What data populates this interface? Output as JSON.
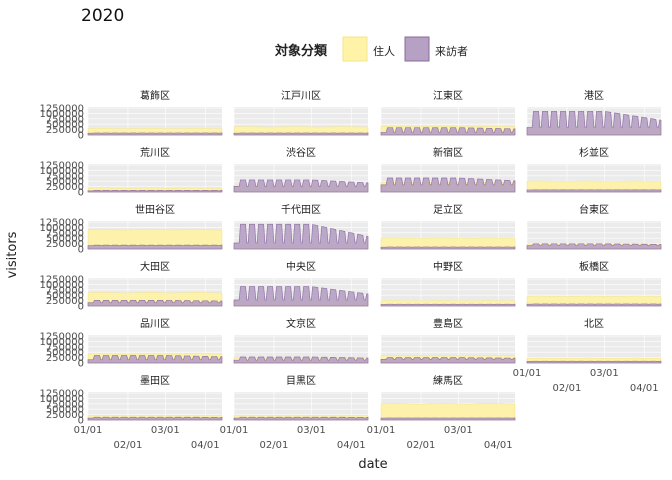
{
  "chart_data": {
    "type": "area",
    "title": "2020",
    "xlabel": "date",
    "ylabel": "visitors",
    "legend": {
      "title": "対象分類",
      "position": "top",
      "entries": [
        {
          "name": "住人",
          "color": "#FFF3A8"
        },
        {
          "name": "来訪者",
          "color": "#B6A0C4"
        }
      ]
    },
    "colors": {
      "resident_fill": "#FFF3A8",
      "resident_line": "#F4E48A",
      "visitor_fill": "#B6A0C4",
      "visitor_line": "#8A6A9E",
      "panel_bg": "#EBEBEB",
      "grid": "#FFFFFF"
    },
    "y_ticks": [
      "1250000",
      "1000000",
      "750000",
      "500000",
      "250000",
      "0"
    ],
    "y_tick_values": [
      1250000,
      1000000,
      750000,
      500000,
      250000,
      0
    ],
    "ylim": [
      0,
      1300000
    ],
    "x_ticks": [
      "01/01",
      "02/01",
      "03/01",
      "04/01"
    ],
    "x_range": [
      "2020-01-01",
      "2020-04-14"
    ],
    "grid": true,
    "facets": [
      {
        "name": "葛飾区",
        "resident": 300000,
        "visitor": 90000,
        "weekday": 95000,
        "weekend": 85000,
        "decline": 0.05
      },
      {
        "name": "江戸川区",
        "resident": 380000,
        "visitor": 90000,
        "weekday": 95000,
        "weekend": 85000,
        "decline": 0.05
      },
      {
        "name": "江東区",
        "resident": 400000,
        "visitor": 180000,
        "weekday": 340000,
        "weekend": 120000,
        "decline": 0.25
      },
      {
        "name": "港区",
        "resident": 320000,
        "visitor": 250000,
        "weekday": 1100000,
        "weekend": 350000,
        "decline": 0.55
      },
      {
        "name": "荒川区",
        "resident": 180000,
        "visitor": 60000,
        "weekday": 75000,
        "weekend": 55000,
        "decline": 0.05
      },
      {
        "name": "渋谷区",
        "resident": 320000,
        "visitor": 200000,
        "weekday": 560000,
        "weekend": 260000,
        "decline": 0.45
      },
      {
        "name": "新宿区",
        "resident": 450000,
        "visitor": 250000,
        "weekday": 650000,
        "weekend": 330000,
        "decline": 0.4
      },
      {
        "name": "杉並区",
        "resident": 500000,
        "visitor": 90000,
        "weekday": 100000,
        "weekend": 95000,
        "decline": 0.05
      },
      {
        "name": "世田谷区",
        "resident": 900000,
        "visitor": 160000,
        "weekday": 180000,
        "weekend": 160000,
        "decline": 0.05
      },
      {
        "name": "千代田区",
        "resident": 140000,
        "visitor": 300000,
        "weekday": 1150000,
        "weekend": 280000,
        "decline": 0.65
      },
      {
        "name": "足立区",
        "resident": 500000,
        "visitor": 90000,
        "weekday": 95000,
        "weekend": 85000,
        "decline": 0.05
      },
      {
        "name": "台東区",
        "resident": 230000,
        "visitor": 110000,
        "weekday": 240000,
        "weekend": 160000,
        "decline": 0.35
      },
      {
        "name": "大田区",
        "resident": 620000,
        "visitor": 150000,
        "weekday": 260000,
        "weekend": 150000,
        "decline": 0.25
      },
      {
        "name": "中央区",
        "resident": 220000,
        "visitor": 260000,
        "weekday": 900000,
        "weekend": 280000,
        "decline": 0.55
      },
      {
        "name": "中野区",
        "resident": 250000,
        "visitor": 70000,
        "weekday": 85000,
        "weekend": 70000,
        "decline": 0.05
      },
      {
        "name": "板橋区",
        "resident": 450000,
        "visitor": 80000,
        "weekday": 95000,
        "weekend": 85000,
        "decline": 0.05
      },
      {
        "name": "品川区",
        "resident": 420000,
        "visitor": 150000,
        "weekday": 350000,
        "weekend": 150000,
        "decline": 0.3
      },
      {
        "name": "文京区",
        "resident": 260000,
        "visitor": 130000,
        "weekday": 280000,
        "weekend": 130000,
        "decline": 0.35
      },
      {
        "name": "豊島区",
        "resident": 340000,
        "visitor": 140000,
        "weekday": 250000,
        "weekend": 170000,
        "decline": 0.3
      },
      {
        "name": "北区",
        "resident": 220000,
        "visitor": 70000,
        "weekday": 85000,
        "weekend": 70000,
        "decline": 0.05
      },
      {
        "name": "墨田区",
        "resident": 200000,
        "visitor": 80000,
        "weekday": 130000,
        "weekend": 90000,
        "decline": 0.15
      },
      {
        "name": "目黒区",
        "resident": 220000,
        "visitor": 80000,
        "weekday": 130000,
        "weekend": 90000,
        "decline": 0.15
      },
      {
        "name": "練馬区",
        "resident": 750000,
        "visitor": 90000,
        "weekday": 95000,
        "weekend": 90000,
        "decline": 0.05
      }
    ]
  }
}
